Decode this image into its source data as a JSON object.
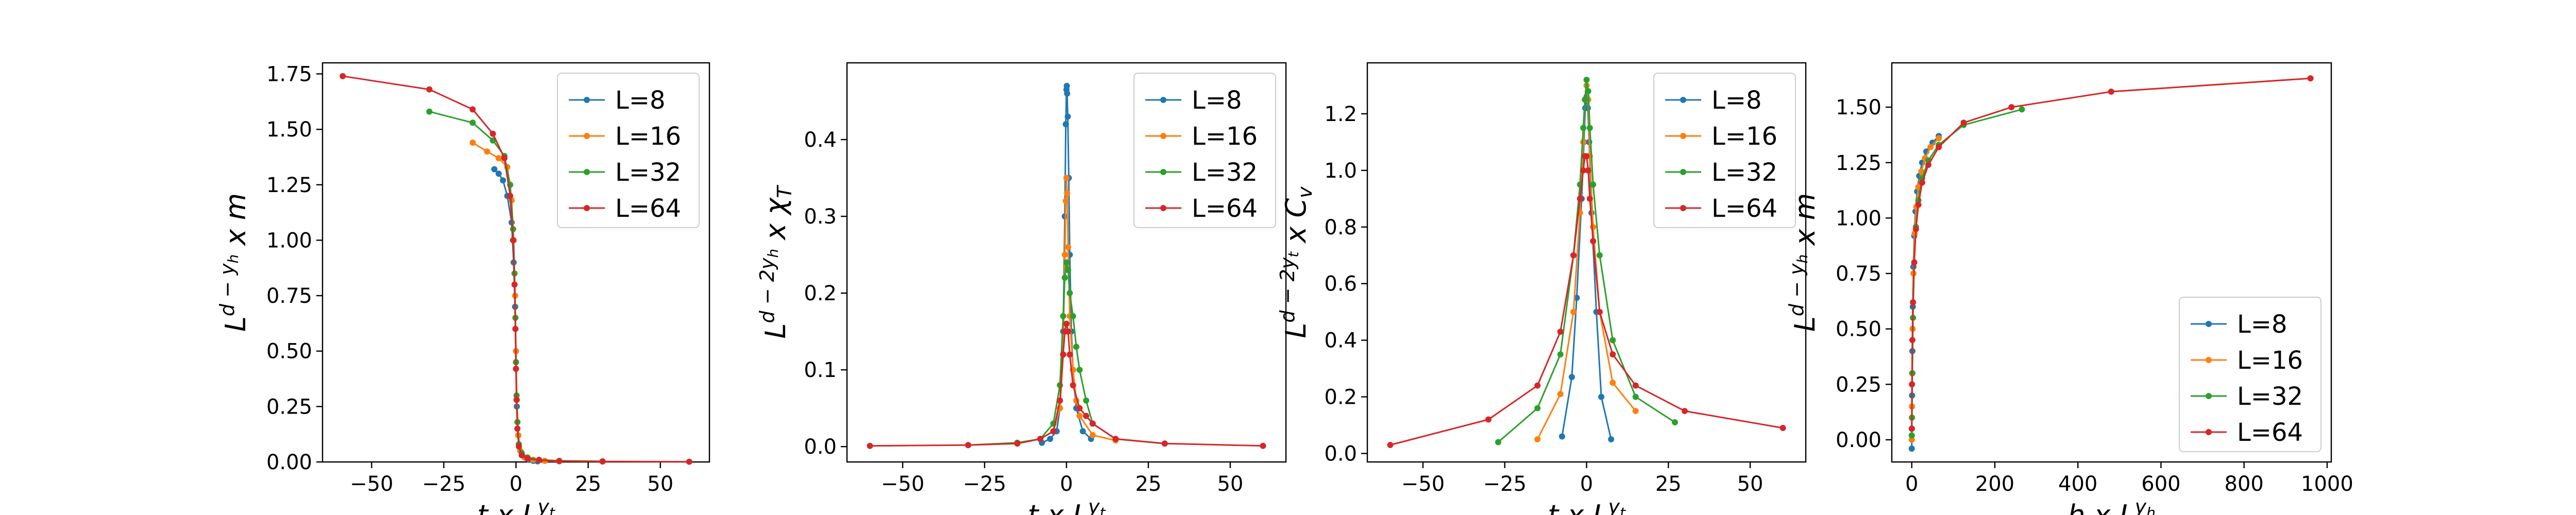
{
  "chart_data": [
    {
      "type": "line",
      "xlabel": "t x L",
      "xlabel_sup": "y",
      "xlabel_sup_sub": "t",
      "ylabel": "L",
      "ylabel_sup": "d − y",
      "ylabel_sup_sub": "h",
      "ylabel_tail": " x m",
      "xlim": [
        -67,
        67
      ],
      "ylim": [
        0,
        1.8
      ],
      "xticks": [
        -50,
        -25,
        0,
        25,
        50
      ],
      "xtick_labels": [
        "−50",
        "−25",
        "0",
        "25",
        "50"
      ],
      "yticks": [
        0,
        0.25,
        0.5,
        0.75,
        1.0,
        1.25,
        1.5,
        1.75
      ],
      "ytick_labels": [
        "0.00",
        "0.25",
        "0.50",
        "0.75",
        "1.00",
        "1.25",
        "1.50",
        "1.75"
      ],
      "legend_position": "top-right",
      "series": [
        {
          "name": "L=8",
          "color": "#1f77b4",
          "x": [
            -7.5,
            -6,
            -4.5,
            -3,
            -1.5,
            -0.8,
            -0.3,
            0,
            0.3,
            0.8,
            1.5,
            3,
            4.5,
            6,
            7.5
          ],
          "y": [
            1.32,
            1.3,
            1.27,
            1.2,
            1.08,
            0.9,
            0.7,
            0.45,
            0.25,
            0.12,
            0.05,
            0.02,
            0.01,
            0.005,
            0.003
          ]
        },
        {
          "name": "L=16",
          "color": "#ff7f0e",
          "x": [
            -15,
            -10,
            -6,
            -3,
            -1.5,
            -0.8,
            -0.3,
            0,
            0.3,
            0.8,
            1.5,
            3,
            6,
            10,
            15
          ],
          "y": [
            1.44,
            1.4,
            1.37,
            1.33,
            1.18,
            1.0,
            0.75,
            0.5,
            0.28,
            0.12,
            0.05,
            0.02,
            0.01,
            0.005,
            0.003
          ]
        },
        {
          "name": "L=32",
          "color": "#2ca02c",
          "x": [
            -30,
            -15,
            -8,
            -4,
            -2,
            -1,
            -0.5,
            -0.2,
            0,
            0.2,
            0.5,
            1,
            2,
            4,
            8,
            15,
            30
          ],
          "y": [
            1.58,
            1.53,
            1.45,
            1.38,
            1.25,
            1.05,
            0.85,
            0.65,
            0.45,
            0.3,
            0.18,
            0.08,
            0.04,
            0.02,
            0.01,
            0.005,
            0.003
          ]
        },
        {
          "name": "L=64",
          "color": "#d62728",
          "x": [
            -60,
            -30,
            -15,
            -8,
            -4,
            -2,
            -1,
            -0.5,
            -0.2,
            0,
            0.2,
            0.5,
            1,
            2,
            4,
            8,
            15,
            30,
            60
          ],
          "y": [
            1.74,
            1.68,
            1.59,
            1.48,
            1.37,
            1.2,
            1.0,
            0.8,
            0.6,
            0.42,
            0.28,
            0.15,
            0.07,
            0.03,
            0.015,
            0.008,
            0.004,
            0.002,
            0.001
          ]
        }
      ]
    },
    {
      "type": "line",
      "xlabel": "t x L",
      "xlabel_sup": "y",
      "xlabel_sup_sub": "t",
      "ylabel": "L",
      "ylabel_sup": "d − 2y",
      "ylabel_sup_sub": "h",
      "ylabel_tail": " x χ",
      "ylabel_tail_sub": "T",
      "xlim": [
        -67,
        67
      ],
      "ylim": [
        -0.02,
        0.5
      ],
      "xticks": [
        -50,
        -25,
        0,
        25,
        50
      ],
      "xtick_labels": [
        "−50",
        "−25",
        "0",
        "25",
        "50"
      ],
      "yticks": [
        0,
        0.1,
        0.2,
        0.3,
        0.4
      ],
      "ytick_labels": [
        "0.0",
        "0.1",
        "0.2",
        "0.3",
        "0.4"
      ],
      "legend_position": "top-right",
      "series": [
        {
          "name": "L=8",
          "color": "#1f77b4",
          "x": [
            -7.5,
            -5,
            -3,
            -2,
            -1,
            -0.5,
            -0.2,
            0,
            0.1,
            0.2,
            0.4,
            0.7,
            1,
            1.5,
            2,
            3,
            5,
            7.5
          ],
          "y": [
            0.005,
            0.01,
            0.02,
            0.05,
            0.15,
            0.3,
            0.42,
            0.465,
            0.47,
            0.46,
            0.43,
            0.35,
            0.25,
            0.15,
            0.1,
            0.05,
            0.02,
            0.01
          ]
        },
        {
          "name": "L=16",
          "color": "#ff7f0e",
          "x": [
            -15,
            -8,
            -4,
            -2,
            -1,
            -0.5,
            -0.2,
            0,
            0.2,
            0.5,
            1,
            2,
            3,
            4,
            8,
            15
          ],
          "y": [
            0.005,
            0.01,
            0.02,
            0.05,
            0.12,
            0.25,
            0.32,
            0.35,
            0.33,
            0.26,
            0.17,
            0.1,
            0.06,
            0.04,
            0.015,
            0.008
          ]
        },
        {
          "name": "L=32",
          "color": "#2ca02c",
          "x": [
            -30,
            -15,
            -8,
            -4,
            -2,
            -1,
            -0.5,
            0,
            0.5,
            1,
            2,
            3,
            4,
            6,
            8,
            15,
            30
          ],
          "y": [
            0.002,
            0.005,
            0.01,
            0.03,
            0.08,
            0.17,
            0.22,
            0.24,
            0.23,
            0.2,
            0.17,
            0.13,
            0.1,
            0.06,
            0.03,
            0.01,
            0.004
          ]
        },
        {
          "name": "L=64",
          "color": "#d62728",
          "x": [
            -60,
            -30,
            -15,
            -8,
            -4,
            -2,
            -1,
            -0.5,
            0,
            0.5,
            1,
            2,
            4,
            6,
            8,
            15,
            30,
            60
          ],
          "y": [
            0.001,
            0.002,
            0.004,
            0.01,
            0.02,
            0.06,
            0.12,
            0.15,
            0.16,
            0.15,
            0.12,
            0.08,
            0.05,
            0.04,
            0.03,
            0.01,
            0.004,
            0.001
          ]
        }
      ]
    },
    {
      "type": "line",
      "xlabel": "t x L",
      "xlabel_sup": "y",
      "xlabel_sup_sub": "t",
      "ylabel": "L",
      "ylabel_sup": "d − 2y",
      "ylabel_sup_sub": "t",
      "ylabel_tail": " x C",
      "ylabel_tail_sub": "v",
      "xlim": [
        -67,
        67
      ],
      "ylim": [
        -0.03,
        1.38
      ],
      "xticks": [
        -50,
        -25,
        0,
        25,
        50
      ],
      "xtick_labels": [
        "−50",
        "−25",
        "0",
        "25",
        "50"
      ],
      "yticks": [
        0,
        0.2,
        0.4,
        0.6,
        0.8,
        1.0,
        1.2
      ],
      "ytick_labels": [
        "0.0",
        "0.2",
        "0.4",
        "0.6",
        "0.8",
        "1.0",
        "1.2"
      ],
      "legend_position": "top-right",
      "series": [
        {
          "name": "L=8",
          "color": "#1f77b4",
          "x": [
            -7.5,
            -4.5,
            -3,
            -1.5,
            -0.8,
            -0.4,
            0,
            0.4,
            0.8,
            1.5,
            3,
            4.5,
            7.5
          ],
          "y": [
            0.06,
            0.27,
            0.55,
            0.9,
            1.1,
            1.22,
            1.26,
            1.22,
            1.1,
            0.85,
            0.5,
            0.2,
            0.05
          ]
        },
        {
          "name": "L=16",
          "color": "#ff7f0e",
          "x": [
            -15,
            -8,
            -4,
            -2,
            -1,
            -0.5,
            0,
            0.5,
            1,
            2,
            4,
            8,
            15
          ],
          "y": [
            0.05,
            0.21,
            0.5,
            0.85,
            1.1,
            1.25,
            1.3,
            1.25,
            1.05,
            0.8,
            0.5,
            0.25,
            0.15
          ]
        },
        {
          "name": "L=32",
          "color": "#2ca02c",
          "x": [
            -27,
            -15,
            -8,
            -4,
            -2,
            -1,
            -0.5,
            0,
            0.5,
            1,
            2,
            4,
            8,
            15,
            27
          ],
          "y": [
            0.04,
            0.16,
            0.35,
            0.7,
            0.95,
            1.15,
            1.25,
            1.32,
            1.28,
            1.15,
            0.95,
            0.7,
            0.4,
            0.2,
            0.11
          ]
        },
        {
          "name": "L=64",
          "color": "#d62728",
          "x": [
            -60,
            -30,
            -15,
            -8,
            -4,
            -2,
            -1,
            -0.5,
            0,
            0.5,
            1,
            2,
            4,
            8,
            15,
            30,
            60
          ],
          "y": [
            0.03,
            0.12,
            0.24,
            0.43,
            0.7,
            0.9,
            1.0,
            1.05,
            1.05,
            1.0,
            0.9,
            0.75,
            0.5,
            0.35,
            0.24,
            0.15,
            0.09
          ]
        }
      ]
    },
    {
      "type": "line",
      "xlabel": "h x L",
      "xlabel_sup": "y",
      "xlabel_sup_sub": "h",
      "ylabel": "L",
      "ylabel_sup": "d − y",
      "ylabel_sup_sub": "h",
      "ylabel_tail": " x m",
      "xlim": [
        -48,
        1010
      ],
      "ylim": [
        -0.1,
        1.7
      ],
      "xticks": [
        0,
        200,
        400,
        600,
        800,
        1000
      ],
      "xtick_labels": [
        "0",
        "200",
        "400",
        "600",
        "800",
        "1000"
      ],
      "yticks": [
        0,
        0.25,
        0.5,
        0.75,
        1.0,
        1.25,
        1.5
      ],
      "ytick_labels": [
        "0.00",
        "0.25",
        "0.50",
        "0.75",
        "1.00",
        "1.25",
        "1.50"
      ],
      "legend_position": "bottom-right",
      "series": [
        {
          "name": "L=8",
          "color": "#1f77b4",
          "x": [
            0,
            0.3,
            0.8,
            1.5,
            2.5,
            4,
            6,
            9,
            13,
            18,
            25,
            35,
            50,
            65
          ],
          "y": [
            -0.04,
            0.05,
            0.2,
            0.4,
            0.6,
            0.78,
            0.92,
            1.03,
            1.12,
            1.19,
            1.25,
            1.3,
            1.34,
            1.37
          ]
        },
        {
          "name": "L=16",
          "color": "#ff7f0e",
          "x": [
            0,
            0.5,
            1,
            2,
            4,
            7,
            11,
            16,
            23,
            32,
            45,
            65
          ],
          "y": [
            0.0,
            0.15,
            0.3,
            0.5,
            0.75,
            0.93,
            1.05,
            1.14,
            1.21,
            1.27,
            1.32,
            1.36
          ]
        },
        {
          "name": "L=32",
          "color": "#2ca02c",
          "x": [
            0,
            0.5,
            1.5,
            3,
            6,
            10,
            16,
            25,
            40,
            65,
            125,
            265
          ],
          "y": [
            0.02,
            0.1,
            0.3,
            0.55,
            0.8,
            0.96,
            1.08,
            1.18,
            1.26,
            1.33,
            1.42,
            1.49
          ]
        },
        {
          "name": "L=64",
          "color": "#d62728",
          "x": [
            0,
            0.5,
            1.5,
            3,
            6,
            10,
            16,
            25,
            40,
            65,
            125,
            240,
            480,
            960
          ],
          "y": [
            0.05,
            0.25,
            0.45,
            0.62,
            0.8,
            0.95,
            1.06,
            1.16,
            1.24,
            1.32,
            1.43,
            1.5,
            1.57,
            1.63
          ]
        }
      ]
    }
  ]
}
